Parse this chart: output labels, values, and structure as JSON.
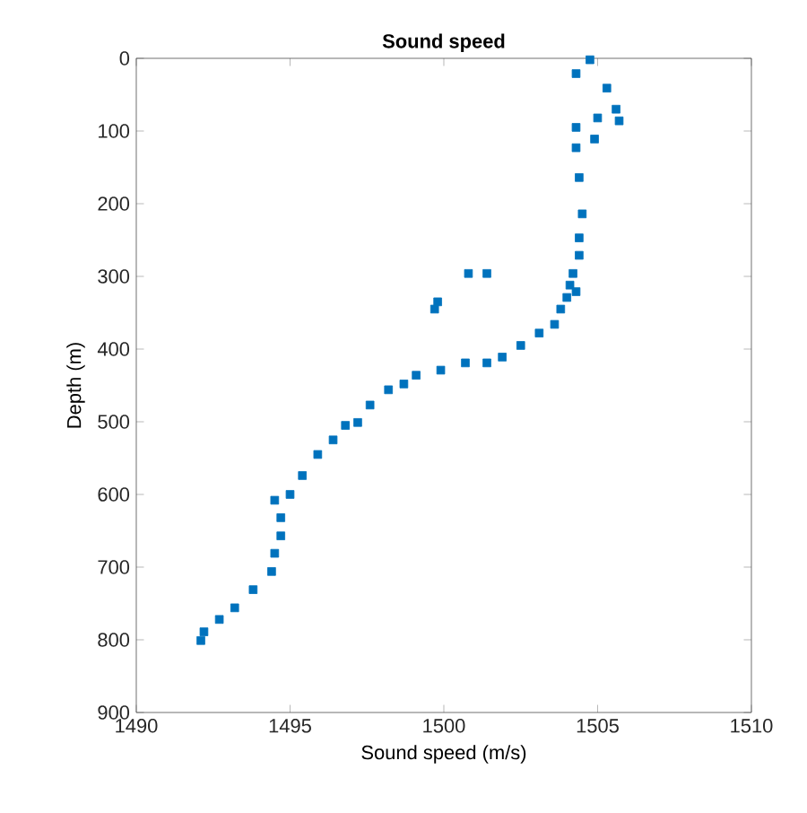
{
  "chart_data": {
    "type": "scatter",
    "title": "**Sound speed**",
    "xlabel": "Sound speed (m/s)",
    "ylabel": "Depth (m)",
    "xlim": [
      1490,
      1510
    ],
    "ylim": [
      900,
      0
    ],
    "xticks": [
      1490,
      1495,
      1500,
      1505,
      1510
    ],
    "yticks": [
      0,
      100,
      200,
      300,
      400,
      500,
      600,
      700,
      800,
      900
    ],
    "marker": "square",
    "grid": false,
    "series": [
      {
        "color": "#0072bd",
        "x": [
          1504.75,
          1504.3,
          1505.3,
          1505.6,
          1505.7,
          1505.0,
          1504.9,
          1504.3,
          1504.3,
          1504.4,
          1504.5,
          1504.4,
          1504.4,
          1504.2,
          1504.1,
          1504.3,
          1504.0,
          1503.8,
          1503.6,
          1503.1,
          1502.5,
          1501.9,
          1501.4,
          1500.7,
          1499.9,
          1499.1,
          1498.7,
          1498.2,
          1497.6,
          1497.2,
          1496.8,
          1496.4,
          1495.9,
          1495.4,
          1495.0,
          1494.5,
          1494.7,
          1494.7,
          1494.5,
          1494.4,
          1493.8,
          1493.2,
          1492.7,
          1492.2,
          1492.1,
          1501.4,
          1500.8,
          1499.8,
          1499.7
        ],
        "values": [
          2,
          21,
          41,
          70,
          86,
          82,
          111,
          95,
          123,
          164,
          214,
          247,
          271,
          296,
          312,
          321,
          329,
          345,
          366,
          378,
          395,
          411,
          419,
          419,
          429,
          436,
          448,
          456,
          477,
          501,
          505,
          525,
          545,
          574,
          600,
          608,
          632,
          657,
          681,
          706,
          731,
          756,
          772,
          789,
          801,
          296,
          296,
          335,
          345
        ]
      }
    ]
  }
}
